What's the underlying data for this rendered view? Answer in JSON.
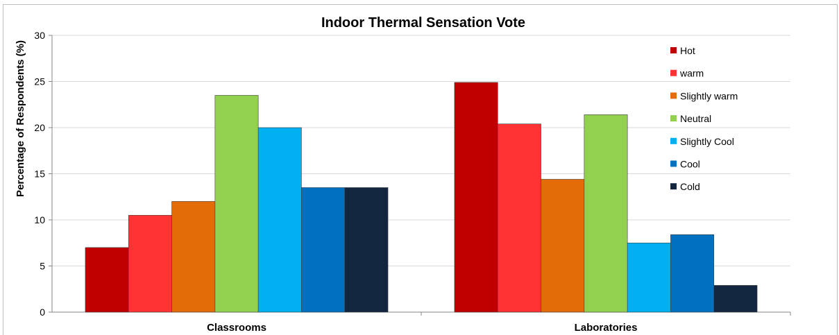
{
  "chart_data": {
    "type": "bar",
    "title": "Indoor Thermal Sensation Vote",
    "xlabel": "",
    "ylabel": "Percentage of Respondents (%)",
    "ylim": [
      0,
      30
    ],
    "yticks": [
      0,
      5,
      10,
      15,
      20,
      25,
      30
    ],
    "grid": true,
    "legend_position": "top-right",
    "categories": [
      "Classrooms",
      "Laboratories"
    ],
    "series": [
      {
        "name": "Hot",
        "color": "#C00000",
        "values": [
          7.0,
          24.9
        ]
      },
      {
        "name": "warm",
        "color": "#FF3333",
        "values": [
          10.5,
          20.4
        ]
      },
      {
        "name": "Slightly warm",
        "color": "#E36C09",
        "values": [
          12.0,
          14.4
        ]
      },
      {
        "name": "Neutral",
        "color": "#92D050",
        "values": [
          23.5,
          21.4
        ]
      },
      {
        "name": "Slightly Cool",
        "color": "#00B0F0",
        "values": [
          20.0,
          7.5
        ]
      },
      {
        "name": "Cool",
        "color": "#0070C0",
        "values": [
          13.5,
          8.4
        ]
      },
      {
        "name": "Cold",
        "color": "#132640",
        "values": [
          13.5,
          2.9
        ]
      }
    ]
  }
}
